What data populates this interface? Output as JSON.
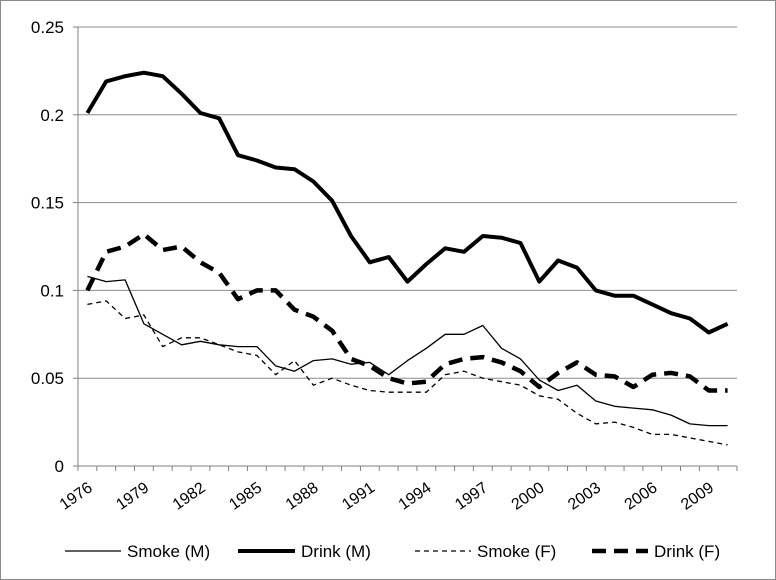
{
  "chart_data": {
    "type": "line",
    "title": "",
    "xlabel": "",
    "ylabel": "",
    "x": [
      1976,
      1977,
      1978,
      1979,
      1980,
      1981,
      1982,
      1983,
      1984,
      1985,
      1986,
      1987,
      1988,
      1989,
      1990,
      1991,
      1992,
      1993,
      1994,
      1995,
      1996,
      1997,
      1998,
      1999,
      2000,
      2001,
      2002,
      2003,
      2004,
      2005,
      2006,
      2007,
      2008,
      2009,
      2010
    ],
    "xlim": [
      1975.5,
      2010.5
    ],
    "ylim": [
      0,
      0.25
    ],
    "y_ticks": [
      "0",
      "0.05",
      "0.1",
      "0.15",
      "0.2",
      "0.25"
    ],
    "y_tick_values": [
      0,
      0.05,
      0.1,
      0.15,
      0.2,
      0.25
    ],
    "x_tick_labels": [
      "1976",
      "1979",
      "1982",
      "1985",
      "1988",
      "1991",
      "1994",
      "1997",
      "2000",
      "2003",
      "2006",
      "2009"
    ],
    "x_tick_values": [
      1976,
      1979,
      1982,
      1985,
      1988,
      1991,
      1994,
      1997,
      2000,
      2003,
      2006,
      2009
    ],
    "grid": true,
    "legend_position": "bottom",
    "series": [
      {
        "name": "Smoke (M)",
        "style": "solid-thin",
        "color": "#000000",
        "values": [
          0.108,
          0.105,
          0.106,
          0.081,
          0.075,
          0.069,
          0.071,
          0.069,
          0.068,
          0.068,
          0.057,
          0.054,
          0.06,
          0.061,
          0.058,
          0.059,
          0.052,
          0.06,
          0.067,
          0.075,
          0.075,
          0.08,
          0.067,
          0.061,
          0.049,
          0.043,
          0.046,
          0.037,
          0.034,
          0.033,
          0.032,
          0.029,
          0.024,
          0.023,
          0.023
        ]
      },
      {
        "name": "Drink (M)",
        "style": "solid-thick",
        "color": "#000000",
        "values": [
          0.201,
          0.219,
          0.222,
          0.224,
          0.222,
          0.212,
          0.201,
          0.198,
          0.177,
          0.174,
          0.17,
          0.169,
          0.162,
          0.151,
          0.131,
          0.116,
          0.119,
          0.105,
          0.115,
          0.124,
          0.122,
          0.131,
          0.13,
          0.127,
          0.105,
          0.117,
          0.113,
          0.1,
          0.097,
          0.097,
          0.092,
          0.087,
          0.084,
          0.076,
          0.081
        ]
      },
      {
        "name": "Smoke (F)",
        "style": "dashed-thin",
        "color": "#000000",
        "values": [
          0.092,
          0.094,
          0.084,
          0.086,
          0.068,
          0.073,
          0.073,
          0.069,
          0.065,
          0.063,
          0.052,
          0.06,
          0.046,
          0.05,
          0.046,
          0.043,
          0.042,
          0.042,
          0.042,
          0.052,
          0.054,
          0.05,
          0.048,
          0.046,
          0.04,
          0.038,
          0.03,
          0.024,
          0.025,
          0.022,
          0.018,
          0.018,
          0.016,
          0.014,
          0.012
        ]
      },
      {
        "name": "Drink (F)",
        "style": "dashed-thick",
        "color": "#000000",
        "values": [
          0.1,
          0.122,
          0.125,
          0.132,
          0.123,
          0.125,
          0.116,
          0.11,
          0.095,
          0.1,
          0.1,
          0.089,
          0.085,
          0.077,
          0.061,
          0.057,
          0.05,
          0.047,
          0.048,
          0.058,
          0.061,
          0.062,
          0.059,
          0.054,
          0.045,
          0.053,
          0.059,
          0.052,
          0.051,
          0.045,
          0.052,
          0.053,
          0.051,
          0.043,
          0.043
        ]
      }
    ]
  }
}
